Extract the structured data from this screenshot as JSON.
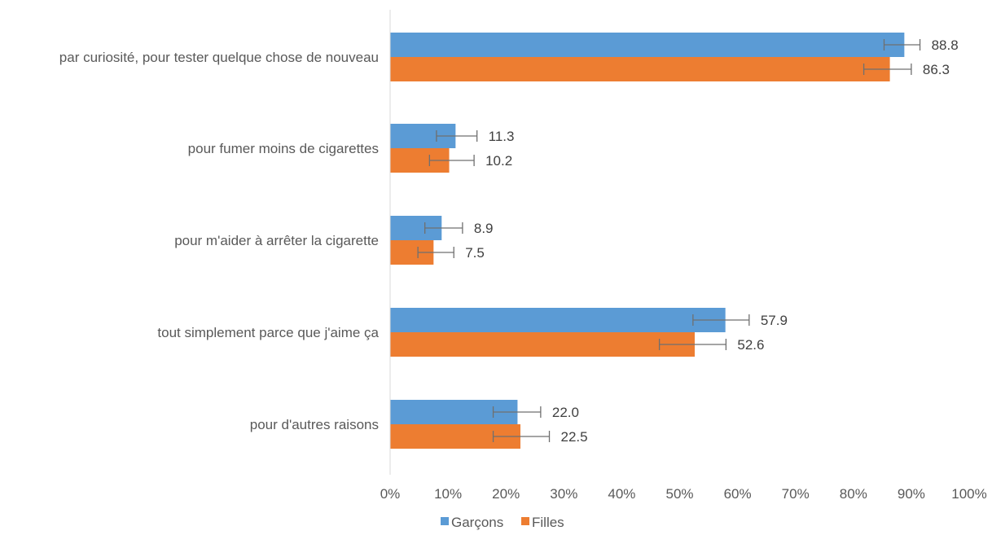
{
  "chart_data": {
    "type": "bar",
    "orientation": "horizontal",
    "categories": [
      "par curiosité, pour tester quelque chose de nouveau",
      "pour fumer moins de cigarettes",
      "pour m'aider à arrêter la cigarette",
      "tout simplement parce que j'aime ça",
      "pour d'autres raisons"
    ],
    "series": [
      {
        "name": "Garçons",
        "color": "#5B9BD5",
        "values": [
          88.8,
          11.3,
          8.9,
          57.9,
          22.0
        ],
        "labels": [
          "88.8",
          "11.3",
          "8.9",
          "57.9",
          "22.0"
        ],
        "error_low": [
          85.3,
          8.0,
          6.0,
          52.3,
          17.8
        ],
        "error_high": [
          91.5,
          15.0,
          12.5,
          62.0,
          26.0
        ]
      },
      {
        "name": "Filles",
        "color": "#ED7D31",
        "values": [
          86.3,
          10.2,
          7.5,
          52.6,
          22.5
        ],
        "labels": [
          "86.3",
          "10.2",
          "7.5",
          "52.6",
          "22.5"
        ],
        "error_low": [
          81.8,
          6.8,
          4.8,
          46.5,
          17.8
        ],
        "error_high": [
          90.0,
          14.5,
          11.0,
          58.0,
          27.5
        ]
      }
    ],
    "xlim": [
      0,
      100
    ],
    "x_ticks": [
      0,
      10,
      20,
      30,
      40,
      50,
      60,
      70,
      80,
      90,
      100
    ],
    "x_tick_labels": [
      "0%",
      "10%",
      "20%",
      "30%",
      "40%",
      "50%",
      "60%",
      "70%",
      "80%",
      "90%",
      "100%"
    ],
    "grid": false,
    "legend": "bottom",
    "title": "",
    "xlabel": "",
    "ylabel": ""
  }
}
